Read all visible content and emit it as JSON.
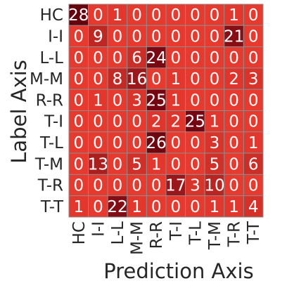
{
  "chart_data": {
    "type": "heatmap",
    "title": "",
    "xlabel": "Prediction Axis",
    "ylabel": "Label Axis",
    "row_labels": [
      "HC",
      "I-I",
      "L-L",
      "M-M",
      "R-R",
      "T-I",
      "T-L",
      "T-M",
      "T-R",
      "T-T"
    ],
    "col_labels": [
      "HC",
      "I-I",
      "L-L",
      "M-M",
      "R-R",
      "T-I",
      "T-L",
      "T-M",
      "T-R",
      "T-T"
    ],
    "values": [
      [
        28,
        0,
        1,
        0,
        0,
        0,
        0,
        0,
        1,
        0
      ],
      [
        0,
        9,
        0,
        0,
        0,
        0,
        0,
        0,
        21,
        0
      ],
      [
        0,
        0,
        0,
        6,
        24,
        0,
        0,
        0,
        0,
        0
      ],
      [
        0,
        0,
        8,
        16,
        0,
        1,
        0,
        0,
        2,
        3
      ],
      [
        0,
        1,
        0,
        3,
        25,
        1,
        0,
        0,
        0,
        0
      ],
      [
        0,
        0,
        0,
        0,
        2,
        2,
        25,
        1,
        0,
        0
      ],
      [
        0,
        0,
        0,
        0,
        26,
        0,
        0,
        3,
        0,
        1
      ],
      [
        0,
        13,
        0,
        5,
        1,
        0,
        0,
        5,
        0,
        6
      ],
      [
        0,
        0,
        0,
        0,
        0,
        17,
        3,
        10,
        0,
        0
      ],
      [
        1,
        0,
        22,
        1,
        0,
        0,
        0,
        1,
        1,
        4
      ]
    ],
    "grid": true,
    "colorbar": false,
    "colors": {
      "low": "#e8392e",
      "high": "#67000d",
      "grid_line": "#8c8c8c"
    }
  }
}
